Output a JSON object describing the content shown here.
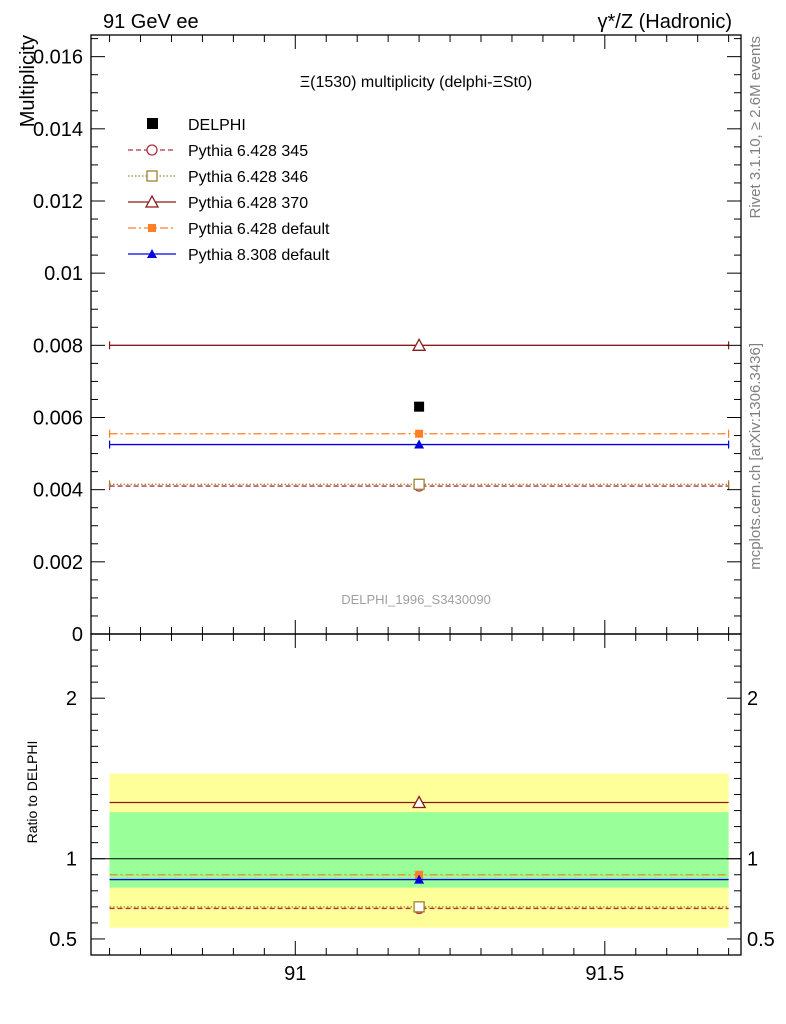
{
  "header": {
    "left": "91 GeV ee",
    "right": "γ*/Z (Hadronic)"
  },
  "side_labels": {
    "rivet": "Rivet 3.1.10, ≥ 2.6M events",
    "mcplots": "mcplots.cern.ch [arXiv:1306.3436]"
  },
  "chart_data": {
    "type": "scatter",
    "title": "Ξ(1530) multiplicity (delphi-ΞSt0)",
    "analysis_id": "DELPHI_1996_S3430090",
    "xlim": [
      90.67,
      91.72
    ],
    "x_ticks": [
      {
        "v": 91,
        "label": "91"
      },
      {
        "v": 91.5,
        "label": "91.5"
      }
    ],
    "x_bin": [
      90.7,
      91.7
    ],
    "x_center": 91.2,
    "main": {
      "ylabel": "Multiplicity",
      "ylim": [
        0,
        0.0166
      ],
      "y_ticks": [
        {
          "v": 0,
          "label": "0"
        },
        {
          "v": 0.002,
          "label": "0.002"
        },
        {
          "v": 0.004,
          "label": "0.004"
        },
        {
          "v": 0.006,
          "label": "0.006"
        },
        {
          "v": 0.008,
          "label": "0.008"
        },
        {
          "v": 0.01,
          "label": "0.01"
        },
        {
          "v": 0.012,
          "label": "0.012"
        },
        {
          "v": 0.014,
          "label": "0.014"
        },
        {
          "v": 0.016,
          "label": "0.016"
        }
      ]
    },
    "ratio": {
      "ylabel": "Ratio to DELPHI",
      "ylim": [
        0.4,
        2.4
      ],
      "y_ticks": [
        {
          "v": 0.5,
          "label": "0.5"
        },
        {
          "v": 1,
          "label": "1"
        },
        {
          "v": 2,
          "label": "2"
        }
      ],
      "band_1sigma": [
        0.82,
        1.29
      ],
      "band_2sigma": [
        0.57,
        1.53
      ],
      "band_colors": {
        "inner": "#99ff99",
        "outer": "#ffff99"
      }
    },
    "data": {
      "name": "DELPHI",
      "y": 0.0063,
      "color": "#000000"
    },
    "series": [
      {
        "name": "Pythia 6.428 345",
        "y": 0.0041,
        "ratio": 0.69,
        "color": "#b03040",
        "dash": "5,3",
        "marker": "circle-open"
      },
      {
        "name": "Pythia 6.428 346",
        "y": 0.00415,
        "ratio": 0.7,
        "color": "#a08030",
        "dash": "1.5,2",
        "marker": "square-open"
      },
      {
        "name": "Pythia 6.428 370",
        "y": 0.008,
        "ratio": 1.35,
        "color": "#8b1a1a",
        "dash": "",
        "marker": "triangle-open"
      },
      {
        "name": "Pythia 6.428 default",
        "y": 0.00555,
        "ratio": 0.9,
        "color": "#ff7f27",
        "dash": "8,3,2,3",
        "marker": "square-filled"
      },
      {
        "name": "Pythia 8.308 default",
        "y": 0.00525,
        "ratio": 0.87,
        "color": "#0000e0",
        "dash": "",
        "marker": "triangle-filled"
      }
    ]
  }
}
